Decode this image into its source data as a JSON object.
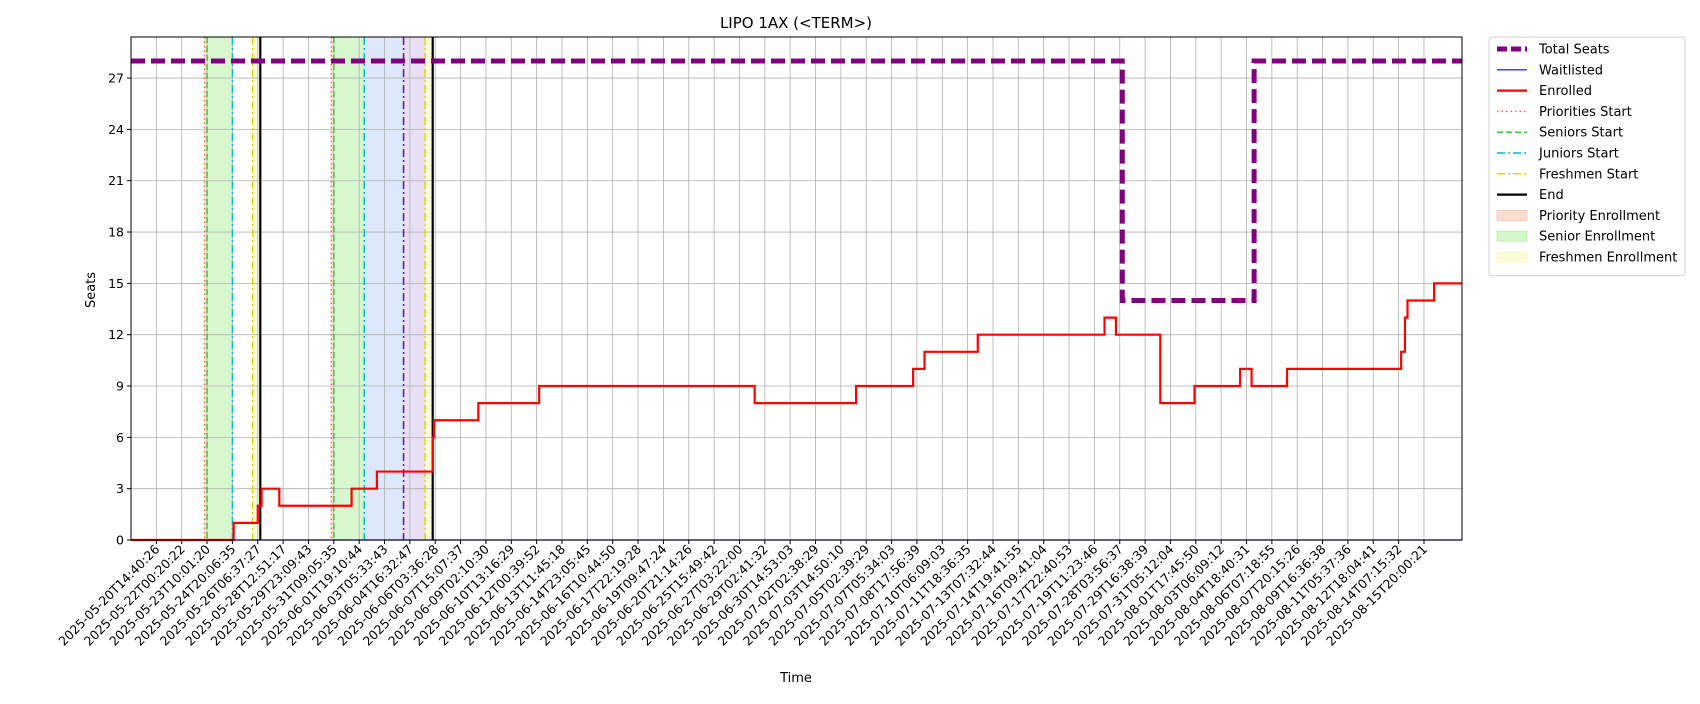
{
  "chart_data": {
    "type": "line",
    "title": "LIPO 1AX (<TERM>)",
    "xlabel": "Time",
    "ylabel": "Seats",
    "ylim": [
      0,
      29.4
    ],
    "yticks": [
      0,
      3,
      6,
      9,
      12,
      15,
      18,
      21,
      24,
      27
    ],
    "grid": true,
    "legend_placement": "outside-top-right",
    "x_ticks": [
      "2025-05-20T14:40:26",
      "2025-05-22T00:20:22",
      "2025-05-23T10:01:20",
      "2025-05-24T20:06:35",
      "2025-05-26T06:37:27",
      "2025-05-28T12:51:17",
      "2025-05-29T23:09:43",
      "2025-05-31T09:05:35",
      "2025-06-01T19:10:44",
      "2025-06-03T05:33:43",
      "2025-06-04T16:32:47",
      "2025-06-06T03:36:28",
      "2025-06-07T15:07:37",
      "2025-06-09T02:10:30",
      "2025-06-10T13:16:29",
      "2025-06-12T00:39:52",
      "2025-06-13T11:45:18",
      "2025-06-14T23:05:45",
      "2025-06-16T10:44:50",
      "2025-06-17T22:19:28",
      "2025-06-19T09:47:24",
      "2025-06-20T21:14:26",
      "2025-06-25T15:49:42",
      "2025-06-27T03:22:00",
      "2025-06-29T02:41:32",
      "2025-06-30T14:53:03",
      "2025-07-02T02:38:29",
      "2025-07-03T14:50:10",
      "2025-07-05T02:39:29",
      "2025-07-07T05:34:03",
      "2025-07-08T17:56:39",
      "2025-07-10T06:09:03",
      "2025-07-11T18:36:35",
      "2025-07-13T07:32:44",
      "2025-07-14T19:41:55",
      "2025-07-16T09:41:04",
      "2025-07-17T22:40:53",
      "2025-07-19T11:23:46",
      "2025-07-28T03:56:37",
      "2025-07-29T16:38:39",
      "2025-07-31T05:12:04",
      "2025-08-01T17:45:50",
      "2025-08-03T06:09:12",
      "2025-08-04T18:40:31",
      "2025-08-06T07:18:55",
      "2025-08-07T20:15:26",
      "2025-08-09T16:36:38",
      "2025-08-11T05:37:36",
      "2025-08-12T18:04:41",
      "2025-08-14T07:15:32",
      "2025-08-15T20:00:21"
    ],
    "x_range_ticks": [
      -1,
      51.5
    ],
    "series": [
      {
        "name": "Total Seats",
        "color": "#800080",
        "style": "dashed-thick",
        "points": [
          [
            -1,
            28
          ],
          [
            38.1,
            28
          ],
          [
            38.1,
            14
          ],
          [
            43.3,
            14
          ],
          [
            43.3,
            28
          ],
          [
            51.5,
            28
          ]
        ]
      },
      {
        "name": "Waitlisted",
        "color": "#0000ff",
        "style": "solid-thin",
        "points": [
          [
            -1,
            0
          ],
          [
            51.5,
            0
          ]
        ]
      },
      {
        "name": "Enrolled",
        "color": "#ff0000",
        "style": "solid",
        "points": [
          [
            -1,
            0
          ],
          [
            3.05,
            0
          ],
          [
            3.05,
            1
          ],
          [
            4,
            1
          ],
          [
            4,
            2
          ],
          [
            4.15,
            2
          ],
          [
            4.15,
            3
          ],
          [
            4.85,
            3
          ],
          [
            4.85,
            2
          ],
          [
            7.7,
            2
          ],
          [
            7.7,
            3
          ],
          [
            8.7,
            3
          ],
          [
            8.7,
            4
          ],
          [
            10.9,
            4
          ],
          [
            10.9,
            6
          ],
          [
            10.95,
            6
          ],
          [
            10.95,
            7
          ],
          [
            12.7,
            7
          ],
          [
            12.7,
            8
          ],
          [
            15.1,
            8
          ],
          [
            15.1,
            9
          ],
          [
            23.6,
            9
          ],
          [
            23.6,
            8
          ],
          [
            27.6,
            8
          ],
          [
            27.6,
            9
          ],
          [
            29.85,
            9
          ],
          [
            29.85,
            10
          ],
          [
            30.3,
            10
          ],
          [
            30.3,
            11
          ],
          [
            32.4,
            11
          ],
          [
            32.4,
            12
          ],
          [
            37.4,
            12
          ],
          [
            37.4,
            13
          ],
          [
            37.85,
            13
          ],
          [
            37.85,
            12
          ],
          [
            39.6,
            12
          ],
          [
            39.6,
            8
          ],
          [
            40.95,
            8
          ],
          [
            40.95,
            9
          ],
          [
            42.75,
            9
          ],
          [
            42.75,
            10
          ],
          [
            43.2,
            10
          ],
          [
            43.2,
            9
          ],
          [
            44.6,
            9
          ],
          [
            44.6,
            10
          ],
          [
            49.1,
            10
          ],
          [
            49.1,
            11
          ],
          [
            49.25,
            11
          ],
          [
            49.25,
            13
          ],
          [
            49.35,
            13
          ],
          [
            49.35,
            14
          ],
          [
            50.4,
            14
          ],
          [
            50.4,
            15
          ],
          [
            51.5,
            15
          ]
        ]
      }
    ],
    "vertical_markers": [
      {
        "name": "Priorities Start",
        "color": "#ff6347",
        "style": "dotted",
        "x": [
          1.9,
          6.9
        ]
      },
      {
        "name": "Seniors Start",
        "color": "#32cd32",
        "style": "dashed",
        "x": [
          2.0,
          7.0
        ]
      },
      {
        "name": "Juniors Start",
        "color": "#00bcd4",
        "style": "dashdot",
        "x": [
          3.0,
          8.2
        ]
      },
      {
        "name": "Freshmen Start",
        "color": "#e6d400",
        "style": "dashdot",
        "x": [
          3.8,
          10.6
        ]
      },
      {
        "name": "End",
        "color": "#000000",
        "style": "solid",
        "x": [
          4.1,
          10.9
        ]
      }
    ],
    "extra_markers": [
      {
        "color": "#6a0dad",
        "style": "dashdot",
        "x": 9.75
      }
    ],
    "spans": [
      {
        "name": "Priority Enrollment",
        "color": "#f8c8b0",
        "ranges": [
          [
            1.9,
            2.0
          ],
          [
            6.9,
            7.0
          ]
        ]
      },
      {
        "name": "Senior Enrollment",
        "color": "#b8f0a8",
        "ranges": [
          [
            2.0,
            3.0
          ],
          [
            7.0,
            8.2
          ]
        ]
      },
      {
        "name": "Freshmen Enrollment",
        "color": "#f8f8c0",
        "ranges": [
          [
            3.8,
            4.1
          ],
          [
            10.6,
            10.9
          ]
        ]
      }
    ],
    "extra_spans": [
      {
        "color": "#c8d8f8",
        "ranges": [
          [
            8.2,
            9.75
          ]
        ]
      },
      {
        "color": "#d8c8f0",
        "ranges": [
          [
            9.75,
            10.6
          ]
        ]
      }
    ],
    "legend": [
      {
        "label": "Total Seats",
        "kind": "line",
        "color": "#800080",
        "style": "dashed-thick"
      },
      {
        "label": "Waitlisted",
        "kind": "line",
        "color": "#0000ff",
        "style": "solid-thin"
      },
      {
        "label": "Enrolled",
        "kind": "line",
        "color": "#ff0000",
        "style": "solid"
      },
      {
        "label": "Priorities Start",
        "kind": "line",
        "color": "#ff6347",
        "style": "dotted"
      },
      {
        "label": "Seniors Start",
        "kind": "line",
        "color": "#32cd32",
        "style": "dashed"
      },
      {
        "label": "Juniors Start",
        "kind": "line",
        "color": "#00bcd4",
        "style": "dashdot"
      },
      {
        "label": "Freshmen Start",
        "kind": "line",
        "color": "#e6d400",
        "style": "dashdot"
      },
      {
        "label": "End",
        "kind": "line",
        "color": "#000000",
        "style": "solid"
      },
      {
        "label": "Priority Enrollment",
        "kind": "patch",
        "color": "#f8c8b0"
      },
      {
        "label": "Senior Enrollment",
        "kind": "patch",
        "color": "#b8f0a8"
      },
      {
        "label": "Freshmen Enrollment",
        "kind": "patch",
        "color": "#f8f8c0"
      }
    ]
  }
}
